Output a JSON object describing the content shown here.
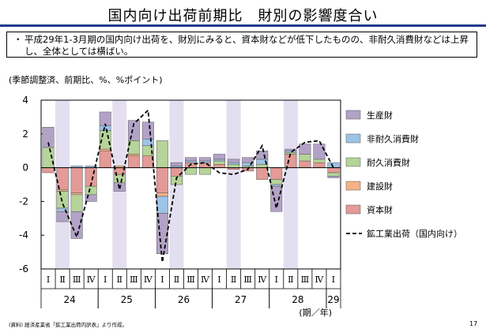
{
  "page": {
    "title": "国内向け出荷前期比　財別の影響度合い",
    "summary": "平成29年1-3月期の国内向け出荷を、財別にみると、資本財などが低下したものの、非耐久消費財などは上昇し、全体としては横ばい。",
    "bullet": "・",
    "source": "(資料) 経済産業省「鉱工業出荷内訳表」より作成。",
    "page_number": "17"
  },
  "chart_data": {
    "type": "bar",
    "stacked": true,
    "unit_label": "(季節調整済、前期比、%、%ポイント)",
    "x_axis_label": "(期／年)",
    "quarters": [
      "Ⅰ",
      "Ⅱ",
      "Ⅲ",
      "Ⅳ",
      "Ⅰ",
      "Ⅱ",
      "Ⅲ",
      "Ⅳ",
      "Ⅰ",
      "Ⅱ",
      "Ⅲ",
      "Ⅳ",
      "Ⅰ",
      "Ⅱ",
      "Ⅲ",
      "Ⅳ",
      "Ⅰ",
      "Ⅱ",
      "Ⅲ",
      "Ⅳ",
      "Ⅰ"
    ],
    "years": [
      {
        "label": "24",
        "start": 0,
        "end": 3
      },
      {
        "label": "25",
        "start": 4,
        "end": 7
      },
      {
        "label": "26",
        "start": 8,
        "end": 11
      },
      {
        "label": "27",
        "start": 12,
        "end": 15
      },
      {
        "label": "28",
        "start": 16,
        "end": 19
      },
      {
        "label": "29",
        "start": 20,
        "end": 20
      }
    ],
    "shaded_quarter": "Ⅱ",
    "ylim": [
      -6,
      4
    ],
    "yticks": [
      4,
      2,
      0,
      -2,
      -4,
      -6
    ],
    "series": [
      {
        "name": "資本財",
        "color": "#e49a96",
        "values": [
          -0.3,
          -1.3,
          -1.5,
          -1.1,
          1.0,
          -0.4,
          0.7,
          0.7,
          -1.5,
          -0.5,
          0.3,
          0.3,
          0.2,
          -0.1,
          -0.2,
          -0.7,
          -0.7,
          0.8,
          0.4,
          0.3,
          -0.3
        ]
      },
      {
        "name": "建設財",
        "color": "#f4b384",
        "values": [
          0.0,
          -0.1,
          -0.1,
          0.0,
          0.1,
          0.1,
          0.1,
          0.0,
          -0.2,
          0.0,
          0.0,
          0.0,
          0.0,
          0.0,
          0.0,
          0.0,
          0.0,
          0.0,
          0.0,
          0.0,
          0.0
        ]
      },
      {
        "name": "耐久消費財",
        "color": "#b6d499",
        "values": [
          1.2,
          -1.0,
          -1.0,
          -0.5,
          1.1,
          -0.5,
          0.8,
          0.6,
          1.6,
          -0.5,
          -0.4,
          -0.4,
          0.2,
          0.2,
          0.1,
          0.2,
          -0.3,
          0.1,
          0.4,
          0.2,
          -0.2
        ]
      },
      {
        "name": "非耐久消費財",
        "color": "#9dc3e6",
        "values": [
          0.0,
          -0.2,
          0.1,
          0.1,
          0.3,
          0.0,
          0.0,
          0.4,
          -1.0,
          0.1,
          0.1,
          0.1,
          0.1,
          0.1,
          0.2,
          0.3,
          -0.1,
          0.1,
          0.0,
          0.0,
          0.3
        ]
      },
      {
        "name": "生産財",
        "color": "#b3a2c7",
        "values": [
          1.2,
          -0.6,
          -1.6,
          -0.4,
          0.8,
          -0.5,
          1.2,
          1.0,
          -2.4,
          0.2,
          0.2,
          0.2,
          0.3,
          0.2,
          0.3,
          0.5,
          -1.5,
          0.1,
          0.6,
          0.9,
          -0.1
        ]
      }
    ],
    "line": {
      "name": "鉱工業出荷（国内向け）",
      "style": "dashed",
      "color": "#000000",
      "values": [
        1.5,
        -2.1,
        -4.1,
        -1.0,
        2.6,
        -1.3,
        2.6,
        3.4,
        -5.6,
        -0.6,
        0.2,
        0.3,
        -0.3,
        -0.4,
        -0.1,
        1.3,
        -2.4,
        0.9,
        1.5,
        1.6,
        0.0
      ]
    }
  }
}
